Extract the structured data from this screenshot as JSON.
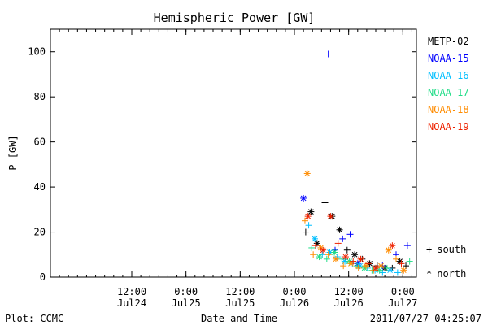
{
  "chart_data": {
    "type": "scatter",
    "title": "Hemispheric Power [GW]",
    "ylabel": "P [GW]",
    "xlabel": "Date and Time",
    "ylim": [
      0,
      110
    ],
    "xlim": [
      "2011-07-23 18:00",
      "2011-07-27 03:00"
    ],
    "yticks": [
      0,
      20,
      40,
      60,
      80,
      100
    ],
    "xticks": [
      {
        "t": "2011-07-24 12:00",
        "line1": "12:00",
        "line2": "Jul24"
      },
      {
        "t": "2011-07-25 00:00",
        "line1": "0:00",
        "line2": "Jul25"
      },
      {
        "t": "2011-07-25 12:00",
        "line1": "12:00",
        "line2": "Jul25"
      },
      {
        "t": "2011-07-26 00:00",
        "line1": "0:00",
        "line2": "Jul26"
      },
      {
        "t": "2011-07-26 12:00",
        "line1": "12:00",
        "line2": "Jul26"
      },
      {
        "t": "2011-07-27 00:00",
        "line1": "0:00",
        "line2": "Jul27"
      }
    ],
    "grid": false,
    "legend_placement": "right",
    "marker_legend": [
      {
        "symbol": "+",
        "label": "south"
      },
      {
        "symbol": "*",
        "label": "north"
      }
    ],
    "series": [
      {
        "name": "METP-02",
        "color": "#000000",
        "points": [
          {
            "t": "2011-07-26 02:30",
            "y": 20,
            "m": "+"
          },
          {
            "t": "2011-07-26 03:40",
            "y": 29,
            "m": "*"
          },
          {
            "t": "2011-07-26 05:00",
            "y": 15,
            "m": "*"
          },
          {
            "t": "2011-07-26 06:45",
            "y": 33,
            "m": "+"
          },
          {
            "t": "2011-07-26 08:20",
            "y": 27,
            "m": "*"
          },
          {
            "t": "2011-07-26 10:00",
            "y": 21,
            "m": "*"
          },
          {
            "t": "2011-07-26 11:40",
            "y": 12,
            "m": "+"
          },
          {
            "t": "2011-07-26 13:20",
            "y": 10,
            "m": "*"
          },
          {
            "t": "2011-07-26 15:00",
            "y": 8,
            "m": "+"
          },
          {
            "t": "2011-07-26 16:40",
            "y": 6,
            "m": "*"
          },
          {
            "t": "2011-07-26 18:20",
            "y": 5,
            "m": "+"
          },
          {
            "t": "2011-07-26 20:00",
            "y": 4,
            "m": "*"
          },
          {
            "t": "2011-07-26 21:40",
            "y": 4,
            "m": "+"
          },
          {
            "t": "2011-07-26 23:20",
            "y": 7,
            "m": "*"
          },
          {
            "t": "2011-07-27 00:40",
            "y": 5,
            "m": "+"
          }
        ]
      },
      {
        "name": "NOAA-15",
        "color": "#0000ff",
        "points": [
          {
            "t": "2011-07-26 02:00",
            "y": 35,
            "m": "*"
          },
          {
            "t": "2011-07-26 07:30",
            "y": 99,
            "m": "+"
          },
          {
            "t": "2011-07-26 09:00",
            "y": 12,
            "m": "+"
          },
          {
            "t": "2011-07-26 10:40",
            "y": 17,
            "m": "+"
          },
          {
            "t": "2011-07-26 12:20",
            "y": 19,
            "m": "+"
          },
          {
            "t": "2011-07-26 14:00",
            "y": 6,
            "m": "*"
          },
          {
            "t": "2011-07-26 19:30",
            "y": 5,
            "m": "+"
          },
          {
            "t": "2011-07-26 22:30",
            "y": 10,
            "m": "+"
          },
          {
            "t": "2011-07-27 01:00",
            "y": 14,
            "m": "+"
          }
        ]
      },
      {
        "name": "NOAA-16",
        "color": "#00bfff",
        "points": [
          {
            "t": "2011-07-26 03:10",
            "y": 23,
            "m": "+"
          },
          {
            "t": "2011-07-26 04:30",
            "y": 17,
            "m": "*"
          },
          {
            "t": "2011-07-26 06:10",
            "y": 10,
            "m": "+"
          },
          {
            "t": "2011-07-26 07:50",
            "y": 11,
            "m": "*"
          },
          {
            "t": "2011-07-26 09:30",
            "y": 9,
            "m": "+"
          },
          {
            "t": "2011-07-26 11:10",
            "y": 7,
            "m": "*"
          },
          {
            "t": "2011-07-26 12:50",
            "y": 6,
            "m": "+"
          },
          {
            "t": "2011-07-26 14:30",
            "y": 5,
            "m": "*"
          },
          {
            "t": "2011-07-26 16:10",
            "y": 4,
            "m": "+"
          },
          {
            "t": "2011-07-26 17:50",
            "y": 3,
            "m": "*"
          },
          {
            "t": "2011-07-26 19:30",
            "y": 2,
            "m": "+"
          },
          {
            "t": "2011-07-26 21:10",
            "y": 3,
            "m": "*"
          },
          {
            "t": "2011-07-26 22:50",
            "y": 2,
            "m": "+"
          }
        ]
      },
      {
        "name": "NOAA-17",
        "color": "#22dd88",
        "points": [
          {
            "t": "2011-07-26 03:50",
            "y": 13,
            "m": "+"
          },
          {
            "t": "2011-07-26 05:30",
            "y": 9,
            "m": "*"
          },
          {
            "t": "2011-07-26 07:10",
            "y": 8,
            "m": "+"
          },
          {
            "t": "2011-07-26 08:50",
            "y": 11,
            "m": "*"
          },
          {
            "t": "2011-07-26 10:30",
            "y": 8,
            "m": "+"
          },
          {
            "t": "2011-07-26 12:10",
            "y": 7,
            "m": "*"
          },
          {
            "t": "2011-07-26 13:50",
            "y": 5,
            "m": "+"
          },
          {
            "t": "2011-07-26 15:30",
            "y": 4,
            "m": "*"
          },
          {
            "t": "2011-07-26 17:10",
            "y": 3,
            "m": "+"
          },
          {
            "t": "2011-07-26 18:50",
            "y": 3,
            "m": "*"
          },
          {
            "t": "2011-07-26 20:30",
            "y": 4,
            "m": "+"
          },
          {
            "t": "2011-07-27 01:30",
            "y": 7,
            "m": "+"
          }
        ]
      },
      {
        "name": "NOAA-18",
        "color": "#ff8c00",
        "points": [
          {
            "t": "2011-07-26 02:20",
            "y": 25,
            "m": "+"
          },
          {
            "t": "2011-07-26 02:50",
            "y": 46,
            "m": "*"
          },
          {
            "t": "2011-07-26 04:10",
            "y": 10,
            "m": "+"
          },
          {
            "t": "2011-07-26 05:50",
            "y": 13,
            "m": "*"
          },
          {
            "t": "2011-07-26 07:30",
            "y": 10,
            "m": "+"
          },
          {
            "t": "2011-07-26 09:10",
            "y": 8,
            "m": "*"
          },
          {
            "t": "2011-07-26 10:50",
            "y": 5,
            "m": "+"
          },
          {
            "t": "2011-07-26 12:30",
            "y": 6,
            "m": "*"
          },
          {
            "t": "2011-07-26 14:10",
            "y": 4,
            "m": "+"
          },
          {
            "t": "2011-07-26 15:50",
            "y": 5,
            "m": "*"
          },
          {
            "t": "2011-07-26 17:30",
            "y": 3,
            "m": "+"
          },
          {
            "t": "2011-07-26 19:10",
            "y": 5,
            "m": "*"
          },
          {
            "t": "2011-07-26 20:50",
            "y": 12,
            "m": "*"
          },
          {
            "t": "2011-07-26 22:30",
            "y": 8,
            "m": "+"
          },
          {
            "t": "2011-07-27 00:10",
            "y": 3,
            "m": "*"
          }
        ]
      },
      {
        "name": "NOAA-19",
        "color": "#ee2200",
        "points": [
          {
            "t": "2011-07-26 03:00",
            "y": 27,
            "m": "*"
          },
          {
            "t": "2011-07-26 04:40",
            "y": 14,
            "m": "+"
          },
          {
            "t": "2011-07-26 06:20",
            "y": 12,
            "m": "*"
          },
          {
            "t": "2011-07-26 08:00",
            "y": 27,
            "m": "*"
          },
          {
            "t": "2011-07-26 09:40",
            "y": 15,
            "m": "+"
          },
          {
            "t": "2011-07-26 11:20",
            "y": 9,
            "m": "*"
          },
          {
            "t": "2011-07-26 13:00",
            "y": 7,
            "m": "+"
          },
          {
            "t": "2011-07-26 14:40",
            "y": 8,
            "m": "*"
          },
          {
            "t": "2011-07-26 16:20",
            "y": 6,
            "m": "+"
          },
          {
            "t": "2011-07-26 18:00",
            "y": 4,
            "m": "*"
          },
          {
            "t": "2011-07-26 21:40",
            "y": 14,
            "m": "*"
          },
          {
            "t": "2011-07-26 23:40",
            "y": 6,
            "m": "+"
          }
        ]
      }
    ]
  },
  "footer": {
    "left": "Plot: CCMC",
    "right": "2011/07/27 04:25:07"
  }
}
